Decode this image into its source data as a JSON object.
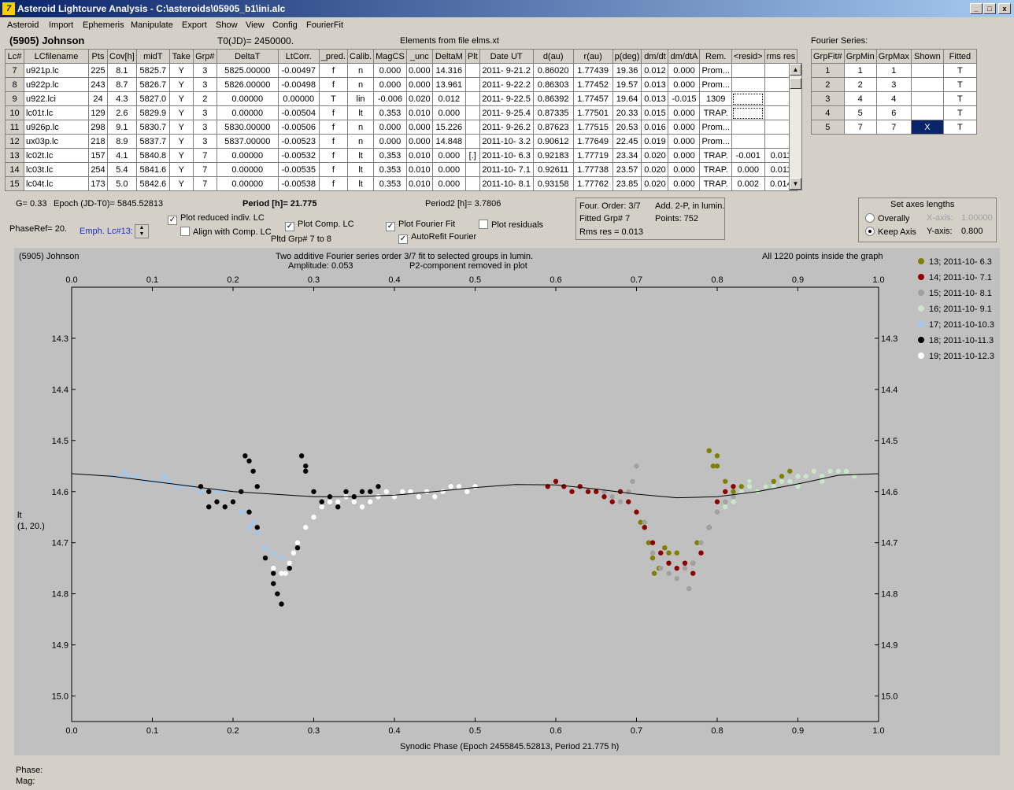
{
  "window": {
    "title": "Asteroid Lightcurve Analysis - C:\\asteroids\\05905_b1\\ini.alc",
    "min": "_",
    "max": "□",
    "close": "x"
  },
  "menu": [
    "Asteroid",
    "Import",
    "Ephemeris",
    "Manipulate",
    "Export",
    "Show",
    "View",
    "Config",
    "FourierFit"
  ],
  "header": {
    "asteroid": "(5905) Johnson",
    "t0": "T0(JD)= 2450000.",
    "elements": "Elements from file elms.xt",
    "fourier_title": "Fourier Series:"
  },
  "lc_table": {
    "columns": [
      "Lc#",
      "LCfilename",
      "Pts",
      "Cov[h]",
      "midT",
      "Take",
      "Grp#",
      "DeltaT",
      "LtCorr.",
      "_pred.",
      "Calib.",
      "MagCS",
      "_unc",
      "DeltaM",
      "Plt",
      "Date UT",
      "d(au)",
      "r(au)",
      "p(deg)",
      "dm/dt",
      "dm/dtA",
      "Rem.",
      "<resid>",
      "rms res"
    ],
    "rows": [
      [
        "7",
        "u921p.lc",
        "225",
        "8.1",
        "5825.7",
        "Y",
        "3",
        "5825.00000",
        "-0.00497",
        "f",
        "n",
        "0.000",
        "0.000",
        "14.316",
        "",
        "2011- 9-21.2",
        "0.86020",
        "1.77439",
        "19.36",
        "0.012",
        "0.000",
        "Prom...",
        "",
        ""
      ],
      [
        "8",
        "u922p.lc",
        "243",
        "8.7",
        "5826.7",
        "Y",
        "3",
        "5826.00000",
        "-0.00498",
        "f",
        "n",
        "0.000",
        "0.000",
        "13.961",
        "",
        "2011- 9-22.2",
        "0.86303",
        "1.77452",
        "19.57",
        "0.013",
        "0.000",
        "Prom...",
        "",
        ""
      ],
      [
        "9",
        "u922.lci",
        "24",
        "4.3",
        "5827.0",
        "Y",
        "2",
        "0.00000",
        "0.00000",
        "T",
        "lin",
        "-0.006",
        "0.020",
        "0.012",
        "",
        "2011- 9-22.5",
        "0.86392",
        "1.77457",
        "19.64",
        "0.013",
        "-0.015",
        "1309",
        "",
        ""
      ],
      [
        "10",
        "lc01t.lc",
        "129",
        "2.6",
        "5829.9",
        "Y",
        "3",
        "0.00000",
        "-0.00504",
        "f",
        "lt",
        "0.353",
        "0.010",
        "0.000",
        "",
        "2011- 9-25.4",
        "0.87335",
        "1.77501",
        "20.33",
        "0.015",
        "0.000",
        "TRAP.",
        "",
        ""
      ],
      [
        "11",
        "u926p.lc",
        "298",
        "9.1",
        "5830.7",
        "Y",
        "3",
        "5830.00000",
        "-0.00506",
        "f",
        "n",
        "0.000",
        "0.000",
        "15.226",
        "",
        "2011- 9-26.2",
        "0.87623",
        "1.77515",
        "20.53",
        "0.016",
        "0.000",
        "Prom...",
        "",
        ""
      ],
      [
        "12",
        "ux03p.lc",
        "218",
        "8.9",
        "5837.7",
        "Y",
        "3",
        "5837.00000",
        "-0.00523",
        "f",
        "n",
        "0.000",
        "0.000",
        "14.848",
        "",
        "2011-10- 3.2",
        "0.90612",
        "1.77649",
        "22.45",
        "0.019",
        "0.000",
        "Prom...",
        "",
        ""
      ],
      [
        "13",
        "lc02t.lc",
        "157",
        "4.1",
        "5840.8",
        "Y",
        "7",
        "0.00000",
        "-0.00532",
        "f",
        "lt",
        "0.353",
        "0.010",
        "0.000",
        "[.]",
        "2011-10- 6.3",
        "0.92183",
        "1.77719",
        "23.34",
        "0.020",
        "0.000",
        "TRAP.",
        "-0.001",
        "0.011"
      ],
      [
        "14",
        "lc03t.lc",
        "254",
        "5.4",
        "5841.6",
        "Y",
        "7",
        "0.00000",
        "-0.00535",
        "f",
        "lt",
        "0.353",
        "0.010",
        "0.000",
        "",
        "2011-10- 7.1",
        "0.92611",
        "1.77738",
        "23.57",
        "0.020",
        "0.000",
        "TRAP.",
        "0.000",
        "0.011"
      ],
      [
        "15",
        "lc04t.lc",
        "173",
        "5.0",
        "5842.6",
        "Y",
        "7",
        "0.00000",
        "-0.00538",
        "f",
        "lt",
        "0.353",
        "0.010",
        "0.000",
        "",
        "2011-10- 8.1",
        "0.93158",
        "1.77762",
        "23.85",
        "0.020",
        "0.000",
        "TRAP.",
        "0.002",
        "0.014"
      ]
    ]
  },
  "fourier_table": {
    "columns": [
      "GrpFit#",
      "GrpMin",
      "GrpMax",
      "Shown",
      "Fitted"
    ],
    "rows": [
      [
        "1",
        "1",
        "1",
        "",
        "T"
      ],
      [
        "2",
        "2",
        "3",
        "",
        "T"
      ],
      [
        "3",
        "4",
        "4",
        "",
        "T"
      ],
      [
        "4",
        "5",
        "6",
        "",
        "T"
      ],
      [
        "5",
        "7",
        "7",
        "X",
        "T"
      ]
    ]
  },
  "info": {
    "g": "G= 0.33",
    "epoch": "Epoch (JD-T0)= 5845.52813",
    "period": "Period [h]= 21.775",
    "period2": "Period2 [h]= 3.7806",
    "phaseref": "PhaseRef= 20.",
    "emph": "Emph. Lc#13:",
    "plot_reduced": "Plot reduced indiv. LC",
    "align": "Align with Comp. LC",
    "plot_comp": "Plot Comp. LC",
    "pltd_grp": "Pltd Grp#  7  to   8",
    "plot_fourier": "Plot Fourier Fit",
    "autorefit": "AutoRefit Fourier",
    "plot_resid": "Plot residuals",
    "four_order": "Four. Order:  3/7",
    "add2p": "Add. 2-P, in lumin.",
    "fitted_grp": "Fitted Grp# 7",
    "points": "Points: 752",
    "rms": "Rms res     = 0.013",
    "axes_title": "Set axes lengths",
    "overally": "Overally",
    "keep_axis": "Keep Axis",
    "xaxis_lbl": "X-axis:",
    "xaxis_val": "1.00000",
    "yaxis_lbl": "Y-axis:",
    "yaxis_val": "0.800"
  },
  "plot": {
    "name": "(5905) Johnson",
    "line1": "Two additive Fourier series order 3/7 fit to selected groups in lumin.",
    "amplitude": "Amplitude: 0.053",
    "p2": "P2-component removed in plot",
    "inside": "All 1220 points inside the graph",
    "ylabel1": "lt",
    "ylabel2": "(1, 20.)",
    "xlabel": "Synodic Phase (Epoch 2455845.52813, Period 21.775 h)",
    "status_phase": "Phase:",
    "status_mag": "Mag:"
  },
  "chart_data": {
    "type": "scatter",
    "x_ticks": [
      "0.0",
      "0.1",
      "0.2",
      "0.3",
      "0.4",
      "0.5",
      "0.6",
      "0.7",
      "0.8",
      "0.9",
      "1.0"
    ],
    "y_ticks": [
      "14.3",
      "14.4",
      "14.5",
      "14.6",
      "14.7",
      "14.8",
      "14.9",
      "15.0"
    ],
    "xlim": [
      0.0,
      1.0
    ],
    "ylim": [
      14.2,
      15.05
    ],
    "y_inverted": true,
    "series": [
      {
        "name": "13; 2011-10- 6.3",
        "color": "#808000",
        "points": [
          [
            0.705,
            14.66
          ],
          [
            0.71,
            14.67
          ],
          [
            0.715,
            14.7
          ],
          [
            0.72,
            14.73
          ],
          [
            0.722,
            14.76
          ],
          [
            0.728,
            14.75
          ],
          [
            0.735,
            14.71
          ],
          [
            0.74,
            14.72
          ],
          [
            0.75,
            14.72
          ],
          [
            0.77,
            14.74
          ],
          [
            0.775,
            14.7
          ],
          [
            0.8,
            14.53
          ],
          [
            0.795,
            14.55
          ],
          [
            0.81,
            14.58
          ],
          [
            0.82,
            14.6
          ],
          [
            0.83,
            14.59
          ],
          [
            0.84,
            14.58
          ],
          [
            0.85,
            14.6
          ],
          [
            0.86,
            14.59
          ],
          [
            0.87,
            14.58
          ],
          [
            0.88,
            14.57
          ],
          [
            0.89,
            14.56
          ],
          [
            0.8,
            14.55
          ],
          [
            0.79,
            14.52
          ]
        ]
      },
      {
        "name": "14; 2011-10- 7.1",
        "color": "#8b0000",
        "points": [
          [
            0.59,
            14.59
          ],
          [
            0.6,
            14.58
          ],
          [
            0.61,
            14.59
          ],
          [
            0.62,
            14.6
          ],
          [
            0.63,
            14.59
          ],
          [
            0.64,
            14.6
          ],
          [
            0.65,
            14.6
          ],
          [
            0.66,
            14.61
          ],
          [
            0.67,
            14.62
          ],
          [
            0.68,
            14.6
          ],
          [
            0.69,
            14.62
          ],
          [
            0.7,
            14.64
          ],
          [
            0.71,
            14.67
          ],
          [
            0.72,
            14.7
          ],
          [
            0.73,
            14.72
          ],
          [
            0.74,
            14.74
          ],
          [
            0.75,
            14.75
          ],
          [
            0.76,
            14.74
          ],
          [
            0.77,
            14.76
          ],
          [
            0.78,
            14.72
          ],
          [
            0.79,
            14.67
          ],
          [
            0.8,
            14.62
          ],
          [
            0.81,
            14.6
          ],
          [
            0.82,
            14.59
          ]
        ]
      },
      {
        "name": "15; 2011-10- 8.1",
        "color": "#a0a0a0",
        "points": [
          [
            0.66,
            14.6
          ],
          [
            0.67,
            14.61
          ],
          [
            0.68,
            14.62
          ],
          [
            0.69,
            14.6
          ],
          [
            0.695,
            14.58
          ],
          [
            0.7,
            14.55
          ],
          [
            0.71,
            14.66
          ],
          [
            0.72,
            14.72
          ],
          [
            0.73,
            14.75
          ],
          [
            0.74,
            14.76
          ],
          [
            0.75,
            14.77
          ],
          [
            0.76,
            14.75
          ],
          [
            0.765,
            14.79
          ],
          [
            0.77,
            14.74
          ],
          [
            0.78,
            14.7
          ],
          [
            0.79,
            14.67
          ],
          [
            0.8,
            14.64
          ],
          [
            0.81,
            14.62
          ],
          [
            0.82,
            14.61
          ]
        ]
      },
      {
        "name": "16; 2011-10- 9.1",
        "color": "#c8e6c8",
        "points": [
          [
            0.81,
            14.63
          ],
          [
            0.82,
            14.62
          ],
          [
            0.83,
            14.6
          ],
          [
            0.84,
            14.59
          ],
          [
            0.85,
            14.6
          ],
          [
            0.86,
            14.59
          ],
          [
            0.87,
            14.59
          ],
          [
            0.88,
            14.58
          ],
          [
            0.89,
            14.58
          ],
          [
            0.9,
            14.57
          ],
          [
            0.91,
            14.57
          ],
          [
            0.92,
            14.56
          ],
          [
            0.93,
            14.57
          ],
          [
            0.94,
            14.56
          ],
          [
            0.95,
            14.56
          ],
          [
            0.96,
            14.56
          ],
          [
            0.97,
            14.57
          ],
          [
            0.84,
            14.58
          ],
          [
            0.9,
            14.59
          ],
          [
            0.93,
            14.58
          ]
        ]
      },
      {
        "name": "17; 2011-10-10.3",
        "color": "#a0c8ea",
        "points": [
          [
            0.05,
            14.57
          ],
          [
            0.06,
            14.57
          ],
          [
            0.07,
            14.57
          ],
          [
            0.08,
            14.57
          ],
          [
            0.09,
            14.58
          ],
          [
            0.1,
            14.58
          ],
          [
            0.11,
            14.58
          ],
          [
            0.12,
            14.58
          ],
          [
            0.13,
            14.59
          ],
          [
            0.14,
            14.59
          ],
          [
            0.15,
            14.59
          ],
          [
            0.16,
            14.6
          ],
          [
            0.17,
            14.6
          ],
          [
            0.18,
            14.6
          ],
          [
            0.19,
            14.6
          ],
          [
            0.2,
            14.62
          ],
          [
            0.21,
            14.64
          ],
          [
            0.22,
            14.67
          ],
          [
            0.225,
            14.66
          ],
          [
            0.23,
            14.68
          ],
          [
            0.24,
            14.71
          ],
          [
            0.25,
            14.72
          ],
          [
            0.26,
            14.73
          ],
          [
            0.065,
            14.56
          ],
          [
            0.115,
            14.57
          ]
        ]
      },
      {
        "name": "18; 2011-10-11.3",
        "color": "#000000",
        "points": [
          [
            0.16,
            14.59
          ],
          [
            0.17,
            14.6
          ],
          [
            0.18,
            14.62
          ],
          [
            0.19,
            14.63
          ],
          [
            0.2,
            14.62
          ],
          [
            0.21,
            14.6
          ],
          [
            0.215,
            14.53
          ],
          [
            0.22,
            14.54
          ],
          [
            0.225,
            14.56
          ],
          [
            0.23,
            14.59
          ],
          [
            0.22,
            14.64
          ],
          [
            0.23,
            14.67
          ],
          [
            0.24,
            14.73
          ],
          [
            0.25,
            14.76
          ],
          [
            0.255,
            14.8
          ],
          [
            0.26,
            14.82
          ],
          [
            0.27,
            14.75
          ],
          [
            0.28,
            14.71
          ],
          [
            0.285,
            14.53
          ],
          [
            0.29,
            14.56
          ],
          [
            0.3,
            14.6
          ],
          [
            0.31,
            14.62
          ],
          [
            0.32,
            14.61
          ],
          [
            0.33,
            14.63
          ],
          [
            0.34,
            14.6
          ],
          [
            0.35,
            14.61
          ],
          [
            0.36,
            14.6
          ],
          [
            0.37,
            14.6
          ],
          [
            0.38,
            14.59
          ],
          [
            0.17,
            14.63
          ],
          [
            0.25,
            14.78
          ],
          [
            0.29,
            14.55
          ]
        ]
      },
      {
        "name": "19; 2011-10-12.3",
        "color": "#ffffff",
        "points": [
          [
            0.25,
            14.75
          ],
          [
            0.26,
            14.76
          ],
          [
            0.27,
            14.74
          ],
          [
            0.28,
            14.7
          ],
          [
            0.29,
            14.67
          ],
          [
            0.3,
            14.65
          ],
          [
            0.31,
            14.63
          ],
          [
            0.32,
            14.62
          ],
          [
            0.33,
            14.62
          ],
          [
            0.34,
            14.61
          ],
          [
            0.35,
            14.62
          ],
          [
            0.36,
            14.63
          ],
          [
            0.37,
            14.62
          ],
          [
            0.38,
            14.61
          ],
          [
            0.39,
            14.6
          ],
          [
            0.4,
            14.61
          ],
          [
            0.41,
            14.6
          ],
          [
            0.42,
            14.6
          ],
          [
            0.43,
            14.61
          ],
          [
            0.44,
            14.6
          ],
          [
            0.45,
            14.61
          ],
          [
            0.46,
            14.6
          ],
          [
            0.47,
            14.59
          ],
          [
            0.48,
            14.59
          ],
          [
            0.49,
            14.6
          ],
          [
            0.5,
            14.59
          ],
          [
            0.265,
            14.76
          ],
          [
            0.275,
            14.72
          ]
        ]
      }
    ],
    "fit_curve": [
      [
        0.0,
        14.565
      ],
      [
        0.05,
        14.57
      ],
      [
        0.1,
        14.58
      ],
      [
        0.15,
        14.59
      ],
      [
        0.2,
        14.6
      ],
      [
        0.25,
        14.605
      ],
      [
        0.3,
        14.61
      ],
      [
        0.35,
        14.61
      ],
      [
        0.4,
        14.607
      ],
      [
        0.45,
        14.6
      ],
      [
        0.5,
        14.592
      ],
      [
        0.55,
        14.586
      ],
      [
        0.6,
        14.587
      ],
      [
        0.65,
        14.595
      ],
      [
        0.7,
        14.605
      ],
      [
        0.75,
        14.612
      ],
      [
        0.8,
        14.61
      ],
      [
        0.85,
        14.6
      ],
      [
        0.9,
        14.585
      ],
      [
        0.95,
        14.568
      ],
      [
        1.0,
        14.565
      ]
    ]
  }
}
